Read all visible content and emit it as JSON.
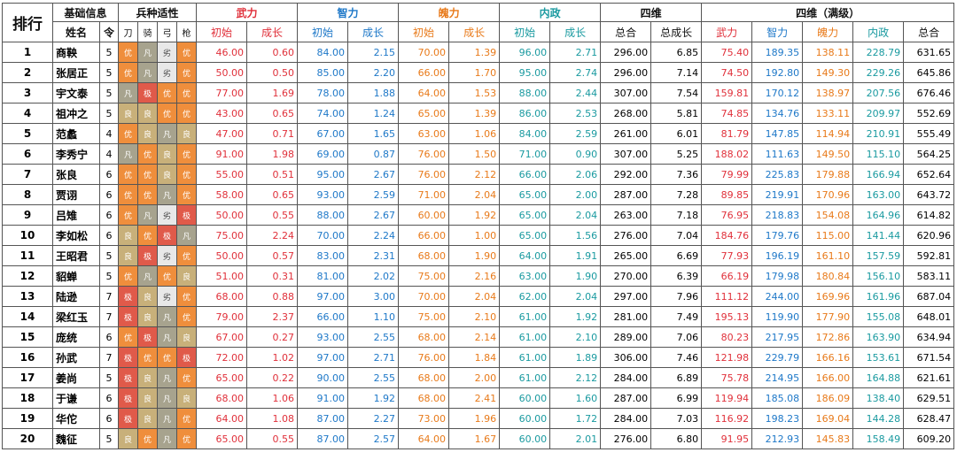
{
  "header": {
    "rank": "排行",
    "basic_info": "基础信息",
    "troop_aptitude": "兵种适性",
    "wuli": "武力",
    "zhili": "智力",
    "poli": "魄力",
    "neizheng": "内政",
    "siwei": "四维",
    "siwei_max": "四维（满级）",
    "name": "姓名",
    "ling": "令",
    "dao": "刀",
    "qi": "骑",
    "gong": "弓",
    "qiang": "枪",
    "init": "初始",
    "growth": "成长",
    "total": "总合",
    "total_growth": "总成长"
  },
  "aptitude_colors": {
    "极": "#e05a4a",
    "优": "#ef8e3c",
    "良": "#c8b07a",
    "凡": "#a7a38e",
    "劣": "#e8e8e8"
  },
  "rows": [
    {
      "rank": "1",
      "name": "商鞅",
      "ling": "5",
      "apt": [
        "优",
        "凡",
        "劣",
        "优"
      ],
      "wu_i": "46.00",
      "wu_g": "0.60",
      "zhi_i": "84.00",
      "zhi_g": "2.15",
      "po_i": "70.00",
      "po_g": "1.39",
      "nei_i": "96.00",
      "nei_g": "2.71",
      "sum": "296.00",
      "sum_g": "6.85",
      "m_wu": "75.40",
      "m_zhi": "189.35",
      "m_po": "138.11",
      "m_nei": "228.79",
      "m_sum": "631.65"
    },
    {
      "rank": "2",
      "name": "张居正",
      "ling": "5",
      "apt": [
        "优",
        "凡",
        "劣",
        "优"
      ],
      "wu_i": "50.00",
      "wu_g": "0.50",
      "zhi_i": "85.00",
      "zhi_g": "2.20",
      "po_i": "66.00",
      "po_g": "1.70",
      "nei_i": "95.00",
      "nei_g": "2.74",
      "sum": "296.00",
      "sum_g": "7.14",
      "m_wu": "74.50",
      "m_zhi": "192.80",
      "m_po": "149.30",
      "m_nei": "229.26",
      "m_sum": "645.86"
    },
    {
      "rank": "3",
      "name": "宇文泰",
      "ling": "5",
      "apt": [
        "凡",
        "极",
        "优",
        "优"
      ],
      "wu_i": "77.00",
      "wu_g": "1.69",
      "zhi_i": "78.00",
      "zhi_g": "1.88",
      "po_i": "64.00",
      "po_g": "1.53",
      "nei_i": "88.00",
      "nei_g": "2.44",
      "sum": "307.00",
      "sum_g": "7.54",
      "m_wu": "159.81",
      "m_zhi": "170.12",
      "m_po": "138.97",
      "m_nei": "207.56",
      "m_sum": "676.46"
    },
    {
      "rank": "4",
      "name": "祖冲之",
      "ling": "5",
      "apt": [
        "良",
        "良",
        "优",
        "优"
      ],
      "wu_i": "43.00",
      "wu_g": "0.65",
      "zhi_i": "74.00",
      "zhi_g": "1.24",
      "po_i": "65.00",
      "po_g": "1.39",
      "nei_i": "86.00",
      "nei_g": "2.53",
      "sum": "268.00",
      "sum_g": "5.81",
      "m_wu": "74.85",
      "m_zhi": "134.76",
      "m_po": "133.11",
      "m_nei": "209.97",
      "m_sum": "552.69"
    },
    {
      "rank": "5",
      "name": "范蠡",
      "ling": "4",
      "apt": [
        "优",
        "良",
        "凡",
        "良"
      ],
      "wu_i": "47.00",
      "wu_g": "0.71",
      "zhi_i": "67.00",
      "zhi_g": "1.65",
      "po_i": "63.00",
      "po_g": "1.06",
      "nei_i": "84.00",
      "nei_g": "2.59",
      "sum": "261.00",
      "sum_g": "6.01",
      "m_wu": "81.79",
      "m_zhi": "147.85",
      "m_po": "114.94",
      "m_nei": "210.91",
      "m_sum": "555.49"
    },
    {
      "rank": "6",
      "name": "李秀宁",
      "ling": "4",
      "apt": [
        "凡",
        "优",
        "良",
        "优"
      ],
      "wu_i": "91.00",
      "wu_g": "1.98",
      "zhi_i": "69.00",
      "zhi_g": "0.87",
      "po_i": "76.00",
      "po_g": "1.50",
      "nei_i": "71.00",
      "nei_g": "0.90",
      "sum": "307.00",
      "sum_g": "5.25",
      "m_wu": "188.02",
      "m_zhi": "111.63",
      "m_po": "149.50",
      "m_nei": "115.10",
      "m_sum": "564.25"
    },
    {
      "rank": "7",
      "name": "张良",
      "ling": "6",
      "apt": [
        "优",
        "优",
        "良",
        "优"
      ],
      "wu_i": "55.00",
      "wu_g": "0.51",
      "zhi_i": "95.00",
      "zhi_g": "2.67",
      "po_i": "76.00",
      "po_g": "2.12",
      "nei_i": "66.00",
      "nei_g": "2.06",
      "sum": "292.00",
      "sum_g": "7.36",
      "m_wu": "79.99",
      "m_zhi": "225.83",
      "m_po": "179.88",
      "m_nei": "166.94",
      "m_sum": "652.64"
    },
    {
      "rank": "8",
      "name": "贾诩",
      "ling": "6",
      "apt": [
        "优",
        "优",
        "凡",
        "优"
      ],
      "wu_i": "58.00",
      "wu_g": "0.65",
      "zhi_i": "93.00",
      "zhi_g": "2.59",
      "po_i": "71.00",
      "po_g": "2.04",
      "nei_i": "65.00",
      "nei_g": "2.00",
      "sum": "287.00",
      "sum_g": "7.28",
      "m_wu": "89.85",
      "m_zhi": "219.91",
      "m_po": "170.96",
      "m_nei": "163.00",
      "m_sum": "643.72"
    },
    {
      "rank": "9",
      "name": "吕雉",
      "ling": "6",
      "apt": [
        "优",
        "凡",
        "劣",
        "极"
      ],
      "wu_i": "50.00",
      "wu_g": "0.55",
      "zhi_i": "88.00",
      "zhi_g": "2.67",
      "po_i": "60.00",
      "po_g": "1.92",
      "nei_i": "65.00",
      "nei_g": "2.04",
      "sum": "263.00",
      "sum_g": "7.18",
      "m_wu": "76.95",
      "m_zhi": "218.83",
      "m_po": "154.08",
      "m_nei": "164.96",
      "m_sum": "614.82"
    },
    {
      "rank": "10",
      "name": "李如松",
      "ling": "6",
      "apt": [
        "良",
        "优",
        "极",
        "凡"
      ],
      "wu_i": "75.00",
      "wu_g": "2.24",
      "zhi_i": "70.00",
      "zhi_g": "2.24",
      "po_i": "66.00",
      "po_g": "1.00",
      "nei_i": "65.00",
      "nei_g": "1.56",
      "sum": "276.00",
      "sum_g": "7.04",
      "m_wu": "184.76",
      "m_zhi": "179.76",
      "m_po": "115.00",
      "m_nei": "141.44",
      "m_sum": "620.96"
    },
    {
      "rank": "11",
      "name": "王昭君",
      "ling": "5",
      "apt": [
        "良",
        "极",
        "劣",
        "优"
      ],
      "wu_i": "50.00",
      "wu_g": "0.57",
      "zhi_i": "83.00",
      "zhi_g": "2.31",
      "po_i": "68.00",
      "po_g": "1.90",
      "nei_i": "64.00",
      "nei_g": "1.91",
      "sum": "265.00",
      "sum_g": "6.69",
      "m_wu": "77.93",
      "m_zhi": "196.19",
      "m_po": "161.10",
      "m_nei": "157.59",
      "m_sum": "592.81"
    },
    {
      "rank": "12",
      "name": "貂蝉",
      "ling": "5",
      "apt": [
        "优",
        "凡",
        "优",
        "良"
      ],
      "wu_i": "51.00",
      "wu_g": "0.31",
      "zhi_i": "81.00",
      "zhi_g": "2.02",
      "po_i": "75.00",
      "po_g": "2.16",
      "nei_i": "63.00",
      "nei_g": "1.90",
      "sum": "270.00",
      "sum_g": "6.39",
      "m_wu": "66.19",
      "m_zhi": "179.98",
      "m_po": "180.84",
      "m_nei": "156.10",
      "m_sum": "583.11"
    },
    {
      "rank": "13",
      "name": "陆逊",
      "ling": "7",
      "apt": [
        "极",
        "良",
        "劣",
        "优"
      ],
      "wu_i": "68.00",
      "wu_g": "0.88",
      "zhi_i": "97.00",
      "zhi_g": "3.00",
      "po_i": "70.00",
      "po_g": "2.04",
      "nei_i": "62.00",
      "nei_g": "2.04",
      "sum": "297.00",
      "sum_g": "7.96",
      "m_wu": "111.12",
      "m_zhi": "244.00",
      "m_po": "169.96",
      "m_nei": "161.96",
      "m_sum": "687.04"
    },
    {
      "rank": "14",
      "name": "梁红玉",
      "ling": "7",
      "apt": [
        "极",
        "良",
        "凡",
        "优"
      ],
      "wu_i": "79.00",
      "wu_g": "2.37",
      "zhi_i": "66.00",
      "zhi_g": "1.10",
      "po_i": "75.00",
      "po_g": "2.10",
      "nei_i": "61.00",
      "nei_g": "1.92",
      "sum": "281.00",
      "sum_g": "7.49",
      "m_wu": "195.13",
      "m_zhi": "119.90",
      "m_po": "177.90",
      "m_nei": "155.08",
      "m_sum": "648.01"
    },
    {
      "rank": "15",
      "name": "庞统",
      "ling": "6",
      "apt": [
        "优",
        "极",
        "凡",
        "良"
      ],
      "wu_i": "67.00",
      "wu_g": "0.27",
      "zhi_i": "93.00",
      "zhi_g": "2.55",
      "po_i": "68.00",
      "po_g": "2.14",
      "nei_i": "61.00",
      "nei_g": "2.10",
      "sum": "289.00",
      "sum_g": "7.06",
      "m_wu": "80.23",
      "m_zhi": "217.95",
      "m_po": "172.86",
      "m_nei": "163.90",
      "m_sum": "634.94"
    },
    {
      "rank": "16",
      "name": "孙武",
      "ling": "7",
      "apt": [
        "极",
        "优",
        "优",
        "极"
      ],
      "wu_i": "72.00",
      "wu_g": "1.02",
      "zhi_i": "97.00",
      "zhi_g": "2.71",
      "po_i": "76.00",
      "po_g": "1.84",
      "nei_i": "61.00",
      "nei_g": "1.89",
      "sum": "306.00",
      "sum_g": "7.46",
      "m_wu": "121.98",
      "m_zhi": "229.79",
      "m_po": "166.16",
      "m_nei": "153.61",
      "m_sum": "671.54"
    },
    {
      "rank": "17",
      "name": "姜尚",
      "ling": "5",
      "apt": [
        "极",
        "良",
        "凡",
        "优"
      ],
      "wu_i": "65.00",
      "wu_g": "0.22",
      "zhi_i": "90.00",
      "zhi_g": "2.55",
      "po_i": "68.00",
      "po_g": "2.00",
      "nei_i": "61.00",
      "nei_g": "2.12",
      "sum": "284.00",
      "sum_g": "6.89",
      "m_wu": "75.78",
      "m_zhi": "214.95",
      "m_po": "166.00",
      "m_nei": "164.88",
      "m_sum": "621.61"
    },
    {
      "rank": "18",
      "name": "于谦",
      "ling": "6",
      "apt": [
        "极",
        "良",
        "凡",
        "良"
      ],
      "wu_i": "68.00",
      "wu_g": "1.06",
      "zhi_i": "91.00",
      "zhi_g": "1.92",
      "po_i": "68.00",
      "po_g": "2.41",
      "nei_i": "60.00",
      "nei_g": "1.60",
      "sum": "287.00",
      "sum_g": "6.99",
      "m_wu": "119.94",
      "m_zhi": "185.08",
      "m_po": "186.09",
      "m_nei": "138.40",
      "m_sum": "629.51"
    },
    {
      "rank": "19",
      "name": "华佗",
      "ling": "6",
      "apt": [
        "极",
        "良",
        "凡",
        "优"
      ],
      "wu_i": "64.00",
      "wu_g": "1.08",
      "zhi_i": "87.00",
      "zhi_g": "2.27",
      "po_i": "73.00",
      "po_g": "1.96",
      "nei_i": "60.00",
      "nei_g": "1.72",
      "sum": "284.00",
      "sum_g": "7.03",
      "m_wu": "116.92",
      "m_zhi": "198.23",
      "m_po": "169.04",
      "m_nei": "144.28",
      "m_sum": "628.47"
    },
    {
      "rank": "20",
      "name": "魏征",
      "ling": "5",
      "apt": [
        "良",
        "优",
        "凡",
        "优"
      ],
      "wu_i": "65.00",
      "wu_g": "0.55",
      "zhi_i": "87.00",
      "zhi_g": "2.57",
      "po_i": "64.00",
      "po_g": "1.67",
      "nei_i": "60.00",
      "nei_g": "2.01",
      "sum": "276.00",
      "sum_g": "6.80",
      "m_wu": "91.95",
      "m_zhi": "212.93",
      "m_po": "145.83",
      "m_nei": "158.49",
      "m_sum": "609.20"
    }
  ]
}
